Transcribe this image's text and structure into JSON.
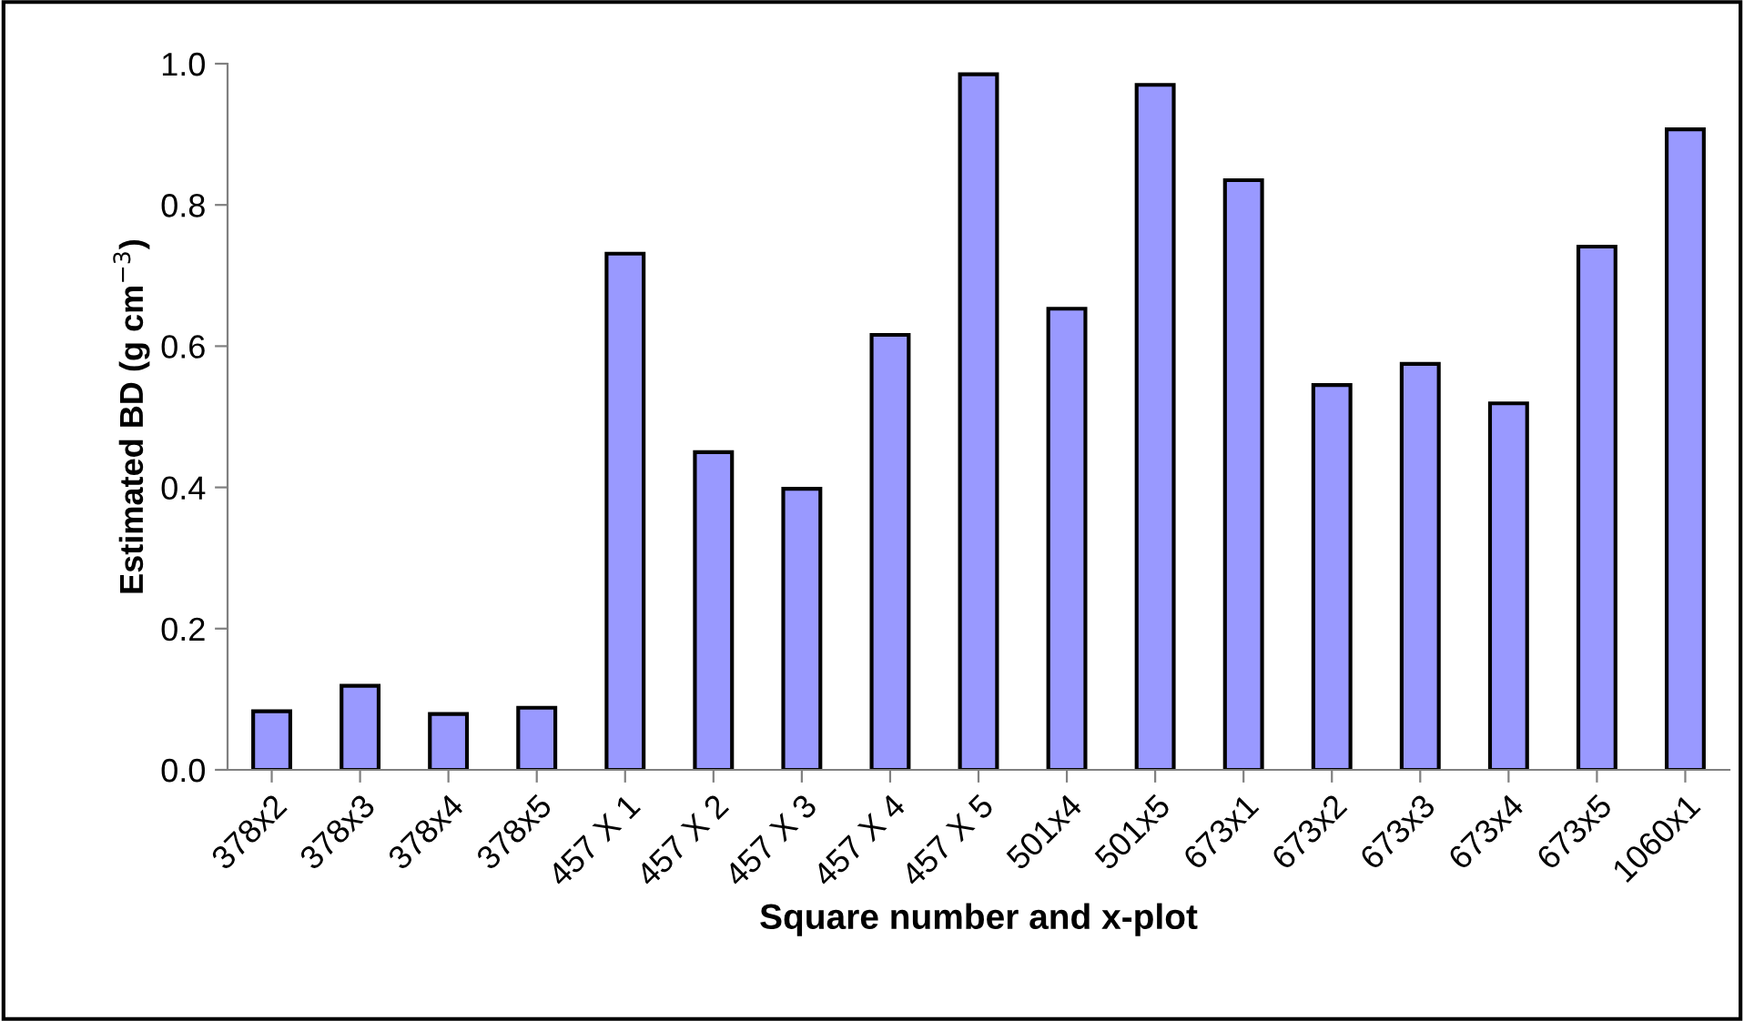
{
  "chart_data": {
    "type": "bar",
    "xlabel": "Square number and x-plot",
    "ylabel": "Estimated BD (g cm$^{−3}$)",
    "categories": [
      "378x2",
      "378x3",
      "378x4",
      "378x5",
      "457 X 1",
      "457 X 2",
      "457 X 3",
      "457 X 4",
      "457 X 5",
      "501x4",
      "501x5",
      "673x1",
      "673x2",
      "673x3",
      "673x4",
      "673x5",
      "1060x1"
    ],
    "values": [
      0.083,
      0.119,
      0.079,
      0.088,
      0.731,
      0.45,
      0.398,
      0.616,
      0.985,
      0.653,
      0.97,
      0.835,
      0.545,
      0.575,
      0.519,
      0.741,
      0.907
    ],
    "color": "#9999ff",
    "ylim": [
      0,
      1.0
    ],
    "yticks": [
      {
        "value": 0,
        "label": "0.0"
      },
      {
        "value": 0.2,
        "label": "0.2"
      },
      {
        "value": 0.4,
        "label": "0.4"
      },
      {
        "value": 0.6,
        "label": "0.6"
      },
      {
        "value": 0.8,
        "label": "0.8"
      },
      {
        "value": 1.0,
        "label": "1.0"
      }
    ],
    "grid": false
  }
}
